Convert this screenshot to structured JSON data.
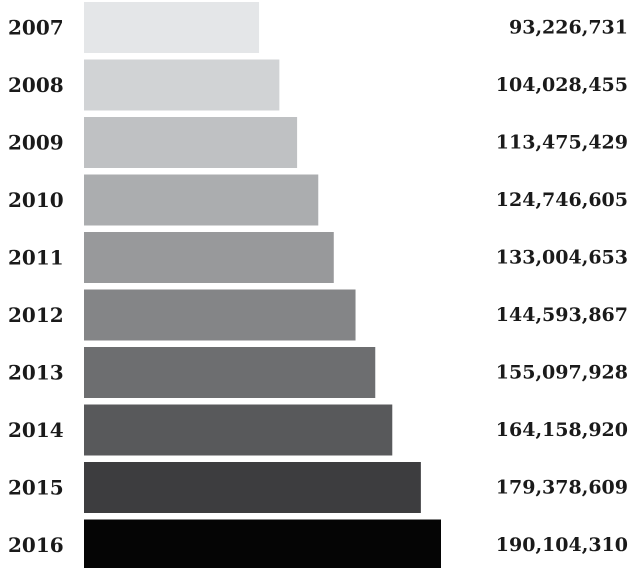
{
  "chart_data": {
    "type": "bar",
    "orientation": "horizontal",
    "categories": [
      "2007",
      "2008",
      "2009",
      "2010",
      "2011",
      "2012",
      "2013",
      "2014",
      "2015",
      "2016"
    ],
    "values": [
      93226731,
      104028455,
      113475429,
      124746605,
      133004653,
      144593867,
      155097928,
      164158920,
      179378609,
      190104310
    ],
    "value_labels": [
      "93,226,731",
      "104,028,455",
      "113,475,429",
      "124,746,605",
      "133,004,653",
      "144,593,867",
      "155,097,928",
      "164,158,920",
      "179,378,609",
      "190,104,310"
    ],
    "colors": [
      "#e4e6e8",
      "#d1d3d5",
      "#bfc1c3",
      "#abadaf",
      "#98999b",
      "#848587",
      "#6d6e70",
      "#58595b",
      "#3d3d3f",
      "#050505"
    ],
    "title": "",
    "xlabel": "",
    "ylabel": "",
    "grid": false,
    "legend": "none"
  }
}
